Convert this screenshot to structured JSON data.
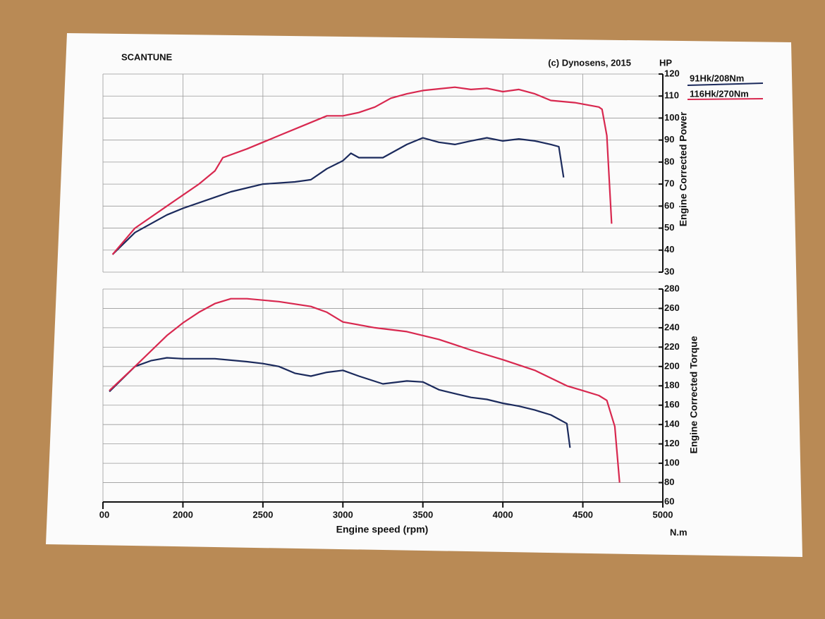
{
  "chart_data": [
    {
      "type": "line",
      "title": "SCANTUNE",
      "annotation": "(c) Dynosens, 2015",
      "y_unit": "HP",
      "ylabel": "Engine Corrected Power",
      "ylim": [
        30,
        120
      ],
      "yticks": [
        30,
        40,
        50,
        60,
        70,
        80,
        90,
        100,
        110,
        120
      ],
      "grid": true,
      "series": [
        {
          "name": "91Hk/208Nm",
          "color": "#1b2a5c",
          "x": [
            1560,
            1700,
            1900,
            2000,
            2200,
            2300,
            2500,
            2700,
            2800,
            2900,
            3000,
            3050,
            3100,
            3250,
            3400,
            3500,
            3600,
            3700,
            3800,
            3900,
            4000,
            4100,
            4200,
            4300,
            4350,
            4380
          ],
          "values": [
            38,
            48,
            56,
            59,
            64,
            66.5,
            70,
            71,
            72,
            77,
            80.6,
            84,
            82,
            82,
            88,
            91,
            89,
            88,
            89.6,
            91,
            89.6,
            90.5,
            89.6,
            88,
            87,
            73
          ]
        },
        {
          "name": "116Hk/270Nm",
          "color": "#d8284f",
          "x": [
            1560,
            1700,
            1900,
            2000,
            2100,
            2200,
            2250,
            2400,
            2600,
            2800,
            2900,
            3000,
            3100,
            3200,
            3300,
            3400,
            3500,
            3700,
            3800,
            3900,
            4000,
            4100,
            4200,
            4300,
            4450,
            4600,
            4620,
            4650,
            4680
          ],
          "values": [
            38,
            50,
            60,
            65,
            70,
            76,
            82,
            86,
            92,
            98,
            101,
            101,
            102.5,
            105,
            109,
            111,
            112.5,
            114,
            113,
            113.5,
            112,
            113,
            111,
            108,
            107,
            105,
            104,
            92,
            52
          ]
        }
      ]
    },
    {
      "type": "line",
      "xlabel": "Engine speed (rpm)",
      "y_unit": "N.m",
      "ylabel": "Engine Corrected Torque",
      "xlim": [
        1500,
        5000
      ],
      "xticks": [
        {
          "value": 1500,
          "label": "00"
        },
        2000,
        2500,
        3000,
        3500,
        4000,
        4500,
        5000
      ],
      "ylim": [
        60,
        280
      ],
      "yticks": [
        60,
        80,
        100,
        120,
        140,
        160,
        180,
        200,
        220,
        240,
        260,
        280
      ],
      "grid": true,
      "series": [
        {
          "color": "#1b2a5c",
          "x": [
            1540,
            1700,
            1800,
            1900,
            2000,
            2200,
            2400,
            2500,
            2600,
            2700,
            2800,
            2900,
            3000,
            3100,
            3250,
            3400,
            3500,
            3600,
            3700,
            3800,
            3900,
            4000,
            4100,
            4200,
            4300,
            4400,
            4420
          ],
          "values": [
            174,
            200,
            206,
            209,
            208,
            208,
            205,
            203,
            200,
            193,
            190,
            194,
            196,
            190,
            182,
            185,
            184,
            176,
            172,
            168,
            166,
            162,
            159,
            155,
            150,
            141,
            116
          ]
        },
        {
          "color": "#d8284f",
          "x": [
            1540,
            1700,
            1900,
            2000,
            2100,
            2200,
            2300,
            2400,
            2600,
            2800,
            2900,
            3000,
            3200,
            3400,
            3600,
            3800,
            4000,
            4200,
            4400,
            4500,
            4600,
            4650,
            4700,
            4730
          ],
          "values": [
            175,
            200,
            232,
            245,
            256,
            265,
            270,
            270,
            267,
            262,
            256,
            246,
            240,
            236,
            228,
            217,
            207,
            196,
            180,
            175,
            170,
            165,
            138,
            80
          ]
        }
      ]
    }
  ]
}
